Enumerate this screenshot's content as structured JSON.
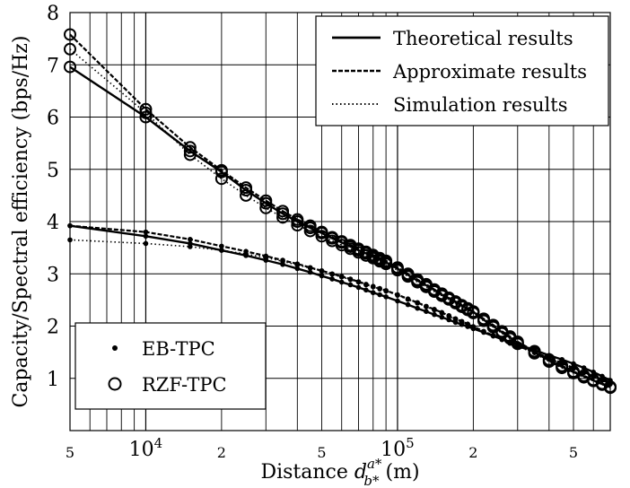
{
  "chart_data": {
    "type": "line",
    "xlabel": "Distance",
    "xlabel_symbol": "d",
    "xlabel_sup": "a*",
    "xlabel_sub": "b*",
    "xlabel_unit": "(m)",
    "ylabel": "Capacity/Spectral efficiency (bps/Hz)",
    "x_scale": "log",
    "xlim": [
      5000,
      700000
    ],
    "ylim": [
      0,
      8
    ],
    "grid": true,
    "x_ticks": [
      {
        "value": 5000,
        "label": "5"
      },
      {
        "value": 10000,
        "label": "10",
        "sup": "4"
      },
      {
        "value": 20000,
        "label": "2"
      },
      {
        "value": 50000,
        "label": "5"
      },
      {
        "value": 100000,
        "label": "10",
        "sup": "5"
      },
      {
        "value": 200000,
        "label": "2"
      },
      {
        "value": 500000,
        "label": "5"
      }
    ],
    "y_ticks": [
      {
        "value": 1,
        "label": "1"
      },
      {
        "value": 2,
        "label": "2"
      },
      {
        "value": 3,
        "label": "3"
      },
      {
        "value": 4,
        "label": "4"
      },
      {
        "value": 5,
        "label": "5"
      },
      {
        "value": 6,
        "label": "6"
      },
      {
        "value": 7,
        "label": "7"
      },
      {
        "value": 8,
        "label": "8"
      }
    ],
    "line_legend": {
      "position": "top-right",
      "entries": [
        {
          "label": "Theoretical results",
          "style": "solid"
        },
        {
          "label": "Approximate results",
          "style": "dashed"
        },
        {
          "label": "Simulation results",
          "style": "dotted"
        }
      ]
    },
    "marker_legend": {
      "position": "bottom-left",
      "entries": [
        {
          "label": "EB-TPC",
          "marker": "dot"
        },
        {
          "label": "RZF-TPC",
          "marker": "circle"
        }
      ]
    },
    "x": [
      5000,
      10000,
      15000,
      20000,
      25000,
      30000,
      35000,
      40000,
      45000,
      50000,
      55000,
      60000,
      65000,
      70000,
      75000,
      80000,
      85000,
      90000,
      100000,
      110000,
      120000,
      130000,
      140000,
      150000,
      160000,
      170000,
      180000,
      190000,
      200000,
      220000,
      240000,
      260000,
      280000,
      300000,
      350000,
      400000,
      450000,
      500000,
      550000,
      600000,
      650000,
      700000
    ],
    "series": [
      {
        "group": "RZF-TPC",
        "style": "solid",
        "marker": "circle",
        "values": [
          6.96,
          6.0,
          5.35,
          4.95,
          4.6,
          4.35,
          4.15,
          4.0,
          3.88,
          3.78,
          3.68,
          3.6,
          3.52,
          3.45,
          3.39,
          3.33,
          3.27,
          3.22,
          3.1,
          2.98,
          2.87,
          2.78,
          2.69,
          2.6,
          2.53,
          2.46,
          2.39,
          2.33,
          2.27,
          2.12,
          2.0,
          1.88,
          1.78,
          1.68,
          1.5,
          1.34,
          1.22,
          1.12,
          1.04,
          0.96,
          0.89,
          0.83
        ]
      },
      {
        "group": "RZF-TPC",
        "style": "dashed",
        "marker": "circle",
        "values": [
          7.58,
          6.15,
          5.42,
          4.98,
          4.65,
          4.4,
          4.2,
          4.04,
          3.92,
          3.8,
          3.7,
          3.62,
          3.55,
          3.48,
          3.42,
          3.36,
          3.3,
          3.25,
          3.12,
          3.0,
          2.89,
          2.8,
          2.7,
          2.62,
          2.54,
          2.47,
          2.4,
          2.34,
          2.28,
          2.14,
          2.02,
          1.9,
          1.8,
          1.7,
          1.52,
          1.36,
          1.24,
          1.13,
          1.05,
          0.97,
          0.9,
          0.84
        ]
      },
      {
        "group": "RZF-TPC",
        "style": "dotted",
        "marker": "circle",
        "values": [
          7.3,
          6.08,
          5.28,
          4.82,
          4.5,
          4.26,
          4.08,
          3.93,
          3.82,
          3.72,
          3.63,
          3.55,
          3.48,
          3.41,
          3.35,
          3.3,
          3.24,
          3.19,
          3.07,
          2.95,
          2.84,
          2.75,
          2.66,
          2.58,
          2.51,
          2.44,
          2.37,
          2.31,
          2.25,
          2.1,
          1.98,
          1.86,
          1.76,
          1.66,
          1.48,
          1.32,
          1.2,
          1.1,
          1.02,
          0.95,
          0.88,
          0.82
        ]
      },
      {
        "group": "EB-TPC",
        "style": "solid",
        "marker": "dot",
        "values": [
          3.92,
          3.72,
          3.58,
          3.45,
          3.35,
          3.26,
          3.18,
          3.1,
          3.03,
          2.96,
          2.9,
          2.84,
          2.79,
          2.74,
          2.69,
          2.64,
          2.6,
          2.56,
          2.48,
          2.41,
          2.34,
          2.28,
          2.22,
          2.17,
          2.12,
          2.07,
          2.03,
          1.99,
          1.95,
          1.88,
          1.81,
          1.75,
          1.7,
          1.65,
          1.54,
          1.44,
          1.36,
          1.28,
          1.2,
          1.12,
          1.04,
          0.96
        ]
      },
      {
        "group": "EB-TPC",
        "style": "dashed",
        "marker": "dot",
        "values": [
          3.92,
          3.8,
          3.66,
          3.53,
          3.43,
          3.34,
          3.26,
          3.19,
          3.12,
          3.06,
          3.0,
          2.95,
          2.9,
          2.85,
          2.8,
          2.76,
          2.72,
          2.68,
          2.6,
          2.52,
          2.45,
          2.38,
          2.32,
          2.26,
          2.2,
          2.14,
          2.09,
          2.04,
          1.99,
          1.9,
          1.82,
          1.75,
          1.68,
          1.62,
          1.5,
          1.39,
          1.29,
          1.2,
          1.12,
          1.04,
          0.97,
          0.9
        ]
      },
      {
        "group": "EB-TPC",
        "style": "dotted",
        "marker": "dot",
        "values": [
          3.65,
          3.58,
          3.52,
          3.45,
          3.38,
          3.31,
          3.24,
          3.17,
          3.11,
          3.05,
          2.99,
          2.94,
          2.89,
          2.84,
          2.79,
          2.75,
          2.71,
          2.67,
          2.59,
          2.51,
          2.44,
          2.37,
          2.31,
          2.25,
          2.19,
          2.13,
          2.08,
          2.03,
          1.98,
          1.89,
          1.81,
          1.74,
          1.67,
          1.61,
          1.49,
          1.38,
          1.28,
          1.19,
          1.11,
          1.03,
          0.96,
          0.89
        ]
      }
    ]
  }
}
